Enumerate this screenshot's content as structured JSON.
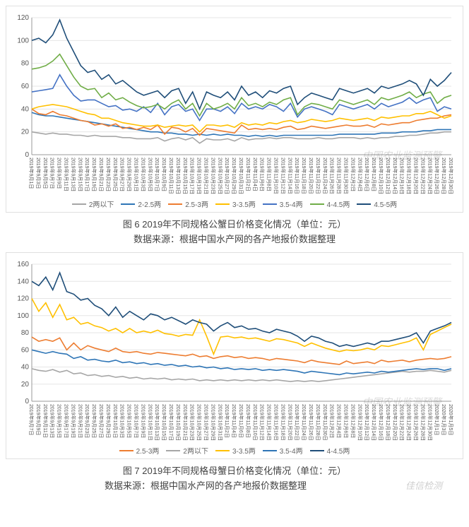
{
  "chart1": {
    "type": "line",
    "title": "图 6 2019年不同规格公蟹日价格变化情况（单位：元）",
    "source": "数据来源：根据中国水产网的各产地报价数据整理",
    "ylim": [
      0,
      120
    ],
    "ytick_step": 20,
    "background_color": "#ffffff",
    "grid_color": "#e6e6e6",
    "x_labels": [
      "2019年9月1日",
      "2019年9月3日",
      "2019年9月5日",
      "2019年9月7日",
      "2019年9月9日",
      "2019年9月11日",
      "2019年9月13日",
      "2019年9月15日",
      "2019年9月17日",
      "2019年9月19日",
      "2019年9月21日",
      "2019年9月23日",
      "2019年9月25日",
      "2019年9月27日",
      "2019年9月29日",
      "2019年10月1日",
      "2019年10月3日",
      "2019年10月5日",
      "2019年10月7日",
      "2019年10月9日",
      "2019年10月11日",
      "2019年10月13日",
      "2019年10月15日",
      "2019年10月17日",
      "2019年10月19日",
      "2019年10月21日",
      "2019年10月23日",
      "2019年10月25日",
      "2019年10月27日",
      "2019年10月29日",
      "2019年10月31日",
      "2019年11月2日",
      "2019年11月4日",
      "2019年11月6日",
      "2019年11月8日",
      "2019年11月10日",
      "2019年11月12日",
      "2019年11月14日",
      "2019年11月16日",
      "2019年11月18日",
      "2019年11月20日",
      "2019年11月22日",
      "2019年11月24日",
      "2019年11月26日",
      "2019年11月28日",
      "2019年11月30日",
      "2019年12月2日",
      "2019年12月4日",
      "2019年12月6日",
      "2019年12月8日",
      "2019年12月10日",
      "2019年12月12日",
      "2019年12月14日",
      "2019年12月16日",
      "2019年12月18日",
      "2019年12月20日",
      "2019年12月22日",
      "2019年12月24日",
      "2019年12月26日",
      "2019年12月28日",
      "2019年12月30日"
    ],
    "series": [
      {
        "name": "2两以下",
        "color": "#a6a6a6",
        "values": [
          20,
          19,
          18,
          19,
          18,
          18,
          17,
          17,
          16,
          17,
          16,
          16,
          16,
          15,
          15,
          14,
          14,
          14,
          15,
          12,
          14,
          15,
          13,
          15,
          10,
          14,
          13,
          13,
          14,
          12,
          15,
          13,
          14,
          14,
          15,
          14,
          15,
          15,
          14,
          14,
          14,
          15,
          14,
          14,
          15,
          15,
          15,
          14,
          15,
          14,
          15,
          15,
          16,
          16,
          17,
          17,
          18,
          19,
          19,
          20,
          20
        ]
      },
      {
        "name": "2-2.5两",
        "color": "#2e75b6",
        "values": [
          37,
          35,
          34,
          34,
          33,
          32,
          31,
          30,
          29,
          28,
          27,
          26,
          25,
          24,
          23,
          22,
          21,
          20,
          20,
          19,
          19,
          18,
          18,
          17,
          18,
          17,
          18,
          17,
          18,
          17,
          17,
          16,
          17,
          16,
          17,
          16,
          17,
          17,
          17,
          17,
          17,
          17,
          17,
          17,
          18,
          18,
          18,
          18,
          18,
          18,
          19,
          19,
          19,
          20,
          20,
          20,
          21,
          21,
          22,
          22,
          22
        ]
      },
      {
        "name": "2.5-3两",
        "color": "#ed7d31",
        "values": [
          40,
          36,
          35,
          38,
          35,
          34,
          32,
          30,
          29,
          26,
          27,
          25,
          27,
          23,
          24,
          22,
          24,
          22,
          26,
          18,
          24,
          23,
          20,
          23,
          17,
          23,
          22,
          21,
          20,
          19,
          26,
          22,
          23,
          22,
          23,
          22,
          24,
          25,
          22,
          23,
          25,
          24,
          23,
          24,
          25,
          26,
          25,
          25,
          26,
          24,
          27,
          26,
          27,
          28,
          28,
          30,
          31,
          32,
          32,
          34,
          35
        ]
      },
      {
        "name": "3-3.5两",
        "color": "#ffc000",
        "values": [
          40,
          42,
          43,
          44,
          43,
          42,
          40,
          38,
          36,
          35,
          32,
          32,
          30,
          28,
          27,
          26,
          25,
          25,
          26,
          24,
          25,
          26,
          25,
          26,
          20,
          26,
          26,
          25,
          26,
          24,
          28,
          26,
          27,
          26,
          28,
          27,
          29,
          30,
          28,
          29,
          31,
          30,
          29,
          30,
          32,
          31,
          30,
          31,
          32,
          30,
          33,
          32,
          33,
          34,
          34,
          36,
          36,
          38,
          35,
          32,
          34
        ]
      },
      {
        "name": "3.5-4两",
        "color": "#4472c4",
        "values": [
          55,
          56,
          57,
          58,
          70,
          60,
          52,
          47,
          48,
          48,
          45,
          42,
          43,
          39,
          40,
          38,
          42,
          37,
          45,
          35,
          42,
          44,
          38,
          40,
          30,
          40,
          40,
          38,
          42,
          36,
          45,
          40,
          42,
          40,
          44,
          42,
          38,
          45,
          33,
          40,
          42,
          40,
          38,
          35,
          44,
          42,
          40,
          42,
          44,
          40,
          45,
          42,
          44,
          46,
          50,
          45,
          48,
          50,
          38,
          42,
          40
        ]
      },
      {
        "name": "4-4.5两",
        "color": "#70ad47",
        "values": [
          75,
          76,
          78,
          82,
          88,
          78,
          68,
          60,
          57,
          58,
          50,
          54,
          48,
          50,
          46,
          43,
          41,
          42,
          44,
          40,
          45,
          48,
          40,
          45,
          34,
          45,
          40,
          42,
          45,
          40,
          50,
          43,
          45,
          42,
          46,
          44,
          48,
          50,
          35,
          42,
          45,
          44,
          42,
          40,
          48,
          46,
          44,
          46,
          48,
          44,
          50,
          48,
          50,
          52,
          55,
          50,
          53,
          55,
          45,
          50,
          52
        ]
      },
      {
        "name": "4.5-5两",
        "color": "#1f4e79",
        "values": [
          100,
          102,
          98,
          105,
          118,
          102,
          90,
          78,
          72,
          74,
          66,
          70,
          62,
          65,
          60,
          55,
          52,
          54,
          56,
          50,
          56,
          58,
          45,
          55,
          40,
          55,
          52,
          50,
          55,
          48,
          60,
          52,
          55,
          50,
          56,
          54,
          58,
          60,
          44,
          50,
          54,
          52,
          50,
          48,
          58,
          56,
          54,
          56,
          58,
          54,
          60,
          58,
          60,
          62,
          65,
          62,
          52,
          66,
          60,
          65,
          72
        ]
      }
    ]
  },
  "chart2": {
    "type": "line",
    "title": "图 7 2019年不同规格母蟹日价格变化情况（单位：元）",
    "source": "数据来源：根据中国水产网的各产地报价数据整理",
    "ylim": [
      0,
      160
    ],
    "ytick_step": 20,
    "background_color": "#ffffff",
    "grid_color": "#e6e6e6",
    "x_labels": [
      "2019年9月7日",
      "2019年9月9日",
      "2019年9月11日",
      "2019年9月13日",
      "2019年9月15日",
      "2019年9月17日",
      "2019年9月19日",
      "2019年9月21日",
      "2019年9月23日",
      "2019年9月25日",
      "2019年9月27日",
      "2019年9月29日",
      "2019年10月1日",
      "2019年10月3日",
      "2019年10月5日",
      "2019年10月7日",
      "2019年10月9日",
      "2019年10月11日",
      "2019年10月13日",
      "2019年10月15日",
      "2019年10月17日",
      "2019年10月19日",
      "2019年10月21日",
      "2019年10月23日",
      "2019年10月25日",
      "2019年10月27日",
      "2019年10月29日",
      "2019年10月31日",
      "2019年11月2日",
      "2019年11月4日",
      "2019年11月6日",
      "2019年11月8日",
      "2019年11月10日",
      "2019年11月12日",
      "2019年11月14日",
      "2019年11月16日",
      "2019年11月18日",
      "2019年11月20日",
      "2019年11月22日",
      "2019年11月24日",
      "2019年11月26日",
      "2019年11月28日",
      "2019年11月30日",
      "2019年12月2日",
      "2019年12月4日",
      "2019年12月6日",
      "2019年12月8日",
      "2019年12月10日",
      "2019年12月12日",
      "2019年12月14日",
      "2019年12月16日",
      "2019年12月18日",
      "2019年12月20日",
      "2019年12月22日",
      "2019年12月24日",
      "2019年12月26日",
      "2019年12月28日",
      "2019年12月30日",
      "2020年1月1日",
      "2020年1月3日",
      "2020年1月5日"
    ],
    "series": [
      {
        "name": "2.5-3两",
        "color": "#ed7d31",
        "values": [
          75,
          70,
          72,
          70,
          74,
          60,
          68,
          60,
          65,
          62,
          60,
          58,
          62,
          58,
          57,
          58,
          56,
          55,
          57,
          56,
          55,
          54,
          53,
          55,
          52,
          53,
          50,
          52,
          53,
          51,
          52,
          50,
          51,
          50,
          48,
          50,
          49,
          48,
          47,
          45,
          48,
          46,
          45,
          44,
          43,
          47,
          44,
          45,
          46,
          44,
          48,
          46,
          47,
          48,
          46,
          48,
          49,
          50,
          49,
          50,
          52
        ]
      },
      {
        "name": "2两以下",
        "color": "#a6a6a6",
        "values": [
          38,
          36,
          35,
          37,
          34,
          36,
          32,
          33,
          30,
          31,
          29,
          30,
          28,
          29,
          27,
          28,
          26,
          27,
          26,
          27,
          25,
          26,
          25,
          26,
          24,
          25,
          24,
          25,
          24,
          25,
          24,
          25,
          24,
          25,
          24,
          25,
          24,
          23,
          24,
          23,
          24,
          23,
          24,
          25,
          26,
          27,
          28,
          29,
          30,
          31,
          32,
          33,
          34,
          35,
          34,
          35,
          35,
          36,
          35,
          34,
          36
        ]
      },
      {
        "name": "3-3.5两",
        "color": "#ffc000",
        "values": [
          120,
          105,
          115,
          98,
          113,
          95,
          98,
          90,
          92,
          88,
          86,
          82,
          85,
          80,
          85,
          80,
          82,
          80,
          83,
          79,
          78,
          76,
          78,
          77,
          95,
          76,
          55,
          75,
          76,
          74,
          75,
          73,
          74,
          72,
          70,
          73,
          72,
          70,
          68,
          64,
          68,
          65,
          62,
          60,
          58,
          60,
          59,
          60,
          62,
          60,
          65,
          64,
          66,
          68,
          70,
          74,
          60,
          78,
          82,
          86,
          90
        ]
      },
      {
        "name": "3.5-4两",
        "color": "#2e75b6",
        "values": [
          60,
          58,
          56,
          58,
          56,
          55,
          50,
          52,
          48,
          49,
          47,
          46,
          48,
          45,
          46,
          44,
          45,
          43,
          44,
          42,
          43,
          41,
          42,
          40,
          41,
          39,
          40,
          38,
          39,
          37,
          38,
          37,
          38,
          36,
          37,
          36,
          37,
          36,
          35,
          33,
          35,
          34,
          33,
          32,
          31,
          33,
          32,
          33,
          34,
          33,
          35,
          34,
          35,
          36,
          37,
          38,
          37,
          38,
          38,
          36,
          38
        ]
      },
      {
        "name": "4-4.5两",
        "color": "#1f4e79",
        "values": [
          140,
          135,
          145,
          130,
          150,
          128,
          125,
          118,
          120,
          112,
          108,
          100,
          110,
          98,
          105,
          100,
          95,
          102,
          100,
          95,
          98,
          94,
          90,
          95,
          92,
          90,
          82,
          88,
          92,
          86,
          88,
          84,
          85,
          82,
          80,
          84,
          82,
          80,
          76,
          70,
          76,
          74,
          70,
          68,
          64,
          66,
          64,
          66,
          68,
          66,
          70,
          70,
          72,
          74,
          76,
          80,
          68,
          82,
          85,
          88,
          92
        ]
      }
    ]
  },
  "watermarks": {
    "main": "中国农业监测预警",
    "small": "佳信检测"
  }
}
